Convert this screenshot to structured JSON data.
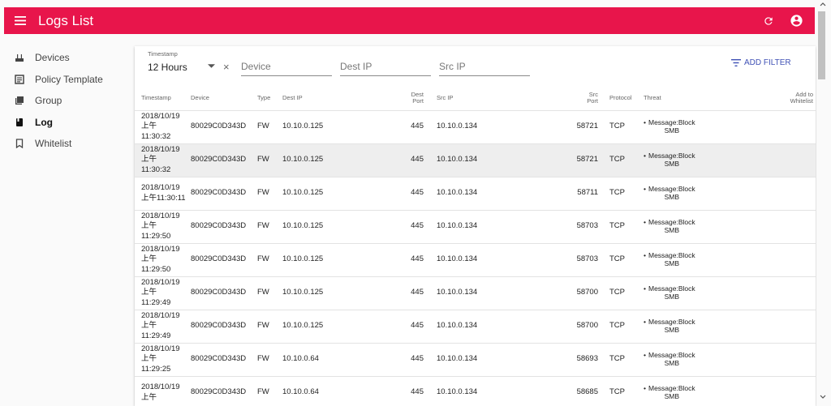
{
  "app": {
    "title": "Logs List",
    "accent_color": "#e8154b",
    "icons": {
      "menu": "menu-icon",
      "refresh": "refresh-icon",
      "account": "account-circle-icon"
    }
  },
  "sidebar": {
    "items": [
      {
        "label": "Devices",
        "icon": "router-icon"
      },
      {
        "label": "Policy Template",
        "icon": "list-box-icon"
      },
      {
        "label": "Group",
        "icon": "library-icon"
      },
      {
        "label": "Log",
        "icon": "book-icon"
      },
      {
        "label": "Whitelist",
        "icon": "bookmark-icon"
      }
    ]
  },
  "filters": {
    "timestamp_label": "Timestamp",
    "timestamp_value": "12 Hours",
    "device_placeholder": "Device",
    "dest_ip_placeholder": "Dest IP",
    "src_ip_placeholder": "Src IP",
    "add_filter_label": "ADD FILTER"
  },
  "table": {
    "headers": {
      "timestamp": "Timestamp",
      "device": "Device",
      "type": "Type",
      "dest_ip": "Dest IP",
      "dest_port": "Dest\nPort",
      "src_ip": "Src IP",
      "src_port": "Src\nPort",
      "protocol": "Protocol",
      "threat": "Threat",
      "add_to_whitelist": "Add to\nWhitelist"
    },
    "rows": [
      {
        "timestamp": "2018/10/19\n上午\n11:30:32",
        "device": "80029C0D343D",
        "type": "FW",
        "dest_ip": "10.10.0.125",
        "dest_port": "445",
        "src_ip": "10.10.0.134",
        "src_port": "58721",
        "protocol": "TCP",
        "threat": "Message:Block\nSMB"
      },
      {
        "timestamp": "2018/10/19\n上午\n11:30:32",
        "device": "80029C0D343D",
        "type": "FW",
        "dest_ip": "10.10.0.125",
        "dest_port": "445",
        "src_ip": "10.10.0.134",
        "src_port": "58721",
        "protocol": "TCP",
        "threat": "Message:Block\nSMB"
      },
      {
        "timestamp": "2018/10/19\n上午11:30:11",
        "device": "80029C0D343D",
        "type": "FW",
        "dest_ip": "10.10.0.125",
        "dest_port": "445",
        "src_ip": "10.10.0.134",
        "src_port": "58711",
        "protocol": "TCP",
        "threat": "Message:Block\nSMB"
      },
      {
        "timestamp": "2018/10/19\n上午\n11:29:50",
        "device": "80029C0D343D",
        "type": "FW",
        "dest_ip": "10.10.0.125",
        "dest_port": "445",
        "src_ip": "10.10.0.134",
        "src_port": "58703",
        "protocol": "TCP",
        "threat": "Message:Block\nSMB"
      },
      {
        "timestamp": "2018/10/19\n上午\n11:29:50",
        "device": "80029C0D343D",
        "type": "FW",
        "dest_ip": "10.10.0.125",
        "dest_port": "445",
        "src_ip": "10.10.0.134",
        "src_port": "58703",
        "protocol": "TCP",
        "threat": "Message:Block\nSMB"
      },
      {
        "timestamp": "2018/10/19\n上午\n11:29:49",
        "device": "80029C0D343D",
        "type": "FW",
        "dest_ip": "10.10.0.125",
        "dest_port": "445",
        "src_ip": "10.10.0.134",
        "src_port": "58700",
        "protocol": "TCP",
        "threat": "Message:Block\nSMB"
      },
      {
        "timestamp": "2018/10/19\n上午\n11:29:49",
        "device": "80029C0D343D",
        "type": "FW",
        "dest_ip": "10.10.0.125",
        "dest_port": "445",
        "src_ip": "10.10.0.134",
        "src_port": "58700",
        "protocol": "TCP",
        "threat": "Message:Block\nSMB"
      },
      {
        "timestamp": "2018/10/19\n上午\n11:29:25",
        "device": "80029C0D343D",
        "type": "FW",
        "dest_ip": "10.10.0.64",
        "dest_port": "445",
        "src_ip": "10.10.0.134",
        "src_port": "58693",
        "protocol": "TCP",
        "threat": "Message:Block\nSMB"
      },
      {
        "timestamp": "2018/10/19\n上午",
        "device": "80029C0D343D",
        "type": "FW",
        "dest_ip": "10.10.0.64",
        "dest_port": "445",
        "src_ip": "10.10.0.134",
        "src_port": "58685",
        "protocol": "TCP",
        "threat": "Message:Block\nSMB"
      }
    ]
  }
}
